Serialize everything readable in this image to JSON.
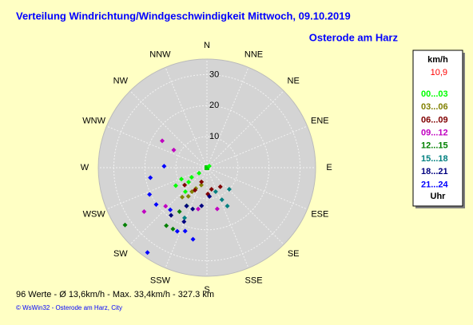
{
  "chart_data": {
    "type": "polar-scatter",
    "title": "Verteilung Windrichtung/Windgeschwindigkeit  Mittwoch, 09.10.2019",
    "subtitle": "Osterode am Harz",
    "directions": [
      "N",
      "NNE",
      "NE",
      "ENE",
      "E",
      "ESE",
      "SE",
      "SSE",
      "S",
      "SSW",
      "SW",
      "WSW",
      "W",
      "WNW",
      "NW",
      "NNW"
    ],
    "rlim": [
      0,
      35
    ],
    "rticks": [
      10,
      20,
      30
    ],
    "legend_title": "km/h",
    "current_speed": {
      "value": 10.9,
      "label": "10,9"
    },
    "legend_footer": "Uhr",
    "series": [
      {
        "name": "00...03",
        "color": "#00ff00",
        "theta": [
          238,
          235,
          232,
          240,
          56,
          222,
          246
        ],
        "values": [
          5.8,
          3.1,
          7.5,
          11.6,
          0.9,
          10.4,
          9.0
        ]
      },
      {
        "name": "03...06",
        "color": "#808000",
        "theta": [
          212,
          208,
          213,
          220,
          198
        ],
        "values": [
          9.1,
          7.6,
          11.0,
          12.4,
          5.9
        ]
      },
      {
        "name": "06...09",
        "color": "#800000",
        "theta": [
          208,
          178,
          168,
          145,
          232,
          201
        ],
        "values": [
          8.2,
          8.5,
          7.1,
          7.5,
          9.1,
          4.9
        ]
      },
      {
        "name": "09...12",
        "color": "#c000c0",
        "theta": [
          301,
          298,
          235,
          227,
          166,
          192
        ],
        "values": [
          16.8,
          12.1,
          24.7,
          18.2,
          13.7,
          13.6
        ]
      },
      {
        "name": "12...15",
        "color": "#008000",
        "theta": [
          235,
          215,
          209,
          212,
          208
        ],
        "values": [
          32.2,
          22.8,
          22.6,
          16.7,
          13.9
        ]
      },
      {
        "name": "15...18",
        "color": "#008080",
        "theta": [
          134,
          152,
          155,
          204,
          160
        ],
        "values": [
          10.0,
          14.0,
          11.4,
          17.7,
          8.2
        ]
      },
      {
        "name": "18...21",
        "color": "#000080",
        "theta": [
          208,
          199,
          188,
          175,
          217,
          203
        ],
        "values": [
          14.0,
          14.1,
          12.4,
          9.3,
          19.2,
          18.9
        ]
      },
      {
        "name": "21...24",
        "color": "#0000ff",
        "theta": [
          260,
          272,
          245,
          234,
          221,
          199,
          191,
          215,
          205
        ],
        "values": [
          18.5,
          13.8,
          20.4,
          20.2,
          18.0,
          21.6,
          23.5,
          33.4,
          22.6
        ]
      }
    ],
    "footer": "96 Werte   -   Ø 13,6km/h   -   Max. 33,4km/h   -   327.3 km",
    "credit": "© WsWin32  -  Osterode am Harz, City"
  }
}
